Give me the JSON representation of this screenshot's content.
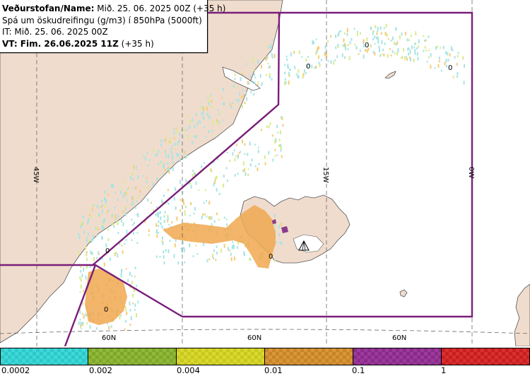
{
  "info": {
    "line1_bold": "Veðurstofan/Name:",
    "line1_rest": " Mið. 25. 06. 2025 00Z (+35 h)",
    "line2": "Spá um öskudreifingu (g/m3) í 850hPa (5000ft)",
    "line3": "IT: Mið. 25. 06. 2025 00Z",
    "line4_bold": "VT: Fim. 26.06.2025 11Z",
    "line4_rest": " (+35 h)"
  },
  "map": {
    "longitude_labels": [
      "45W",
      "15W",
      "0W"
    ],
    "latitude_labels": [
      "60N",
      "60N",
      "60N"
    ],
    "contour_labels": [
      "0",
      "0",
      "0",
      "0",
      "0",
      "0"
    ],
    "colors": {
      "land": "#f0dccd",
      "sea": "#ffffff",
      "coast": "#555555",
      "grid": "#555555",
      "fir_boundary": "#7a1e7a",
      "ash_low": "#a8e4e4",
      "ash_mid": "#d8ec8c",
      "ash_high": "#f2ce78",
      "ash_orange": "#f0a850",
      "ash_purple": "#8a3a8a"
    }
  },
  "legend": {
    "segments": [
      {
        "color": "#2dc8c8",
        "alt": "#3fd8d8"
      },
      {
        "color": "#7ea82a",
        "alt": "#90b83a"
      },
      {
        "color": "#c8c81e",
        "alt": "#d8d830"
      },
      {
        "color": "#c88428",
        "alt": "#d89638"
      },
      {
        "color": "#8a2a8a",
        "alt": "#9a3a9a"
      },
      {
        "color": "#c81e1e",
        "alt": "#d83030"
      }
    ],
    "labels": [
      "0.0002",
      "0.002",
      "0.004",
      "0.01",
      "0.1",
      "1"
    ]
  }
}
